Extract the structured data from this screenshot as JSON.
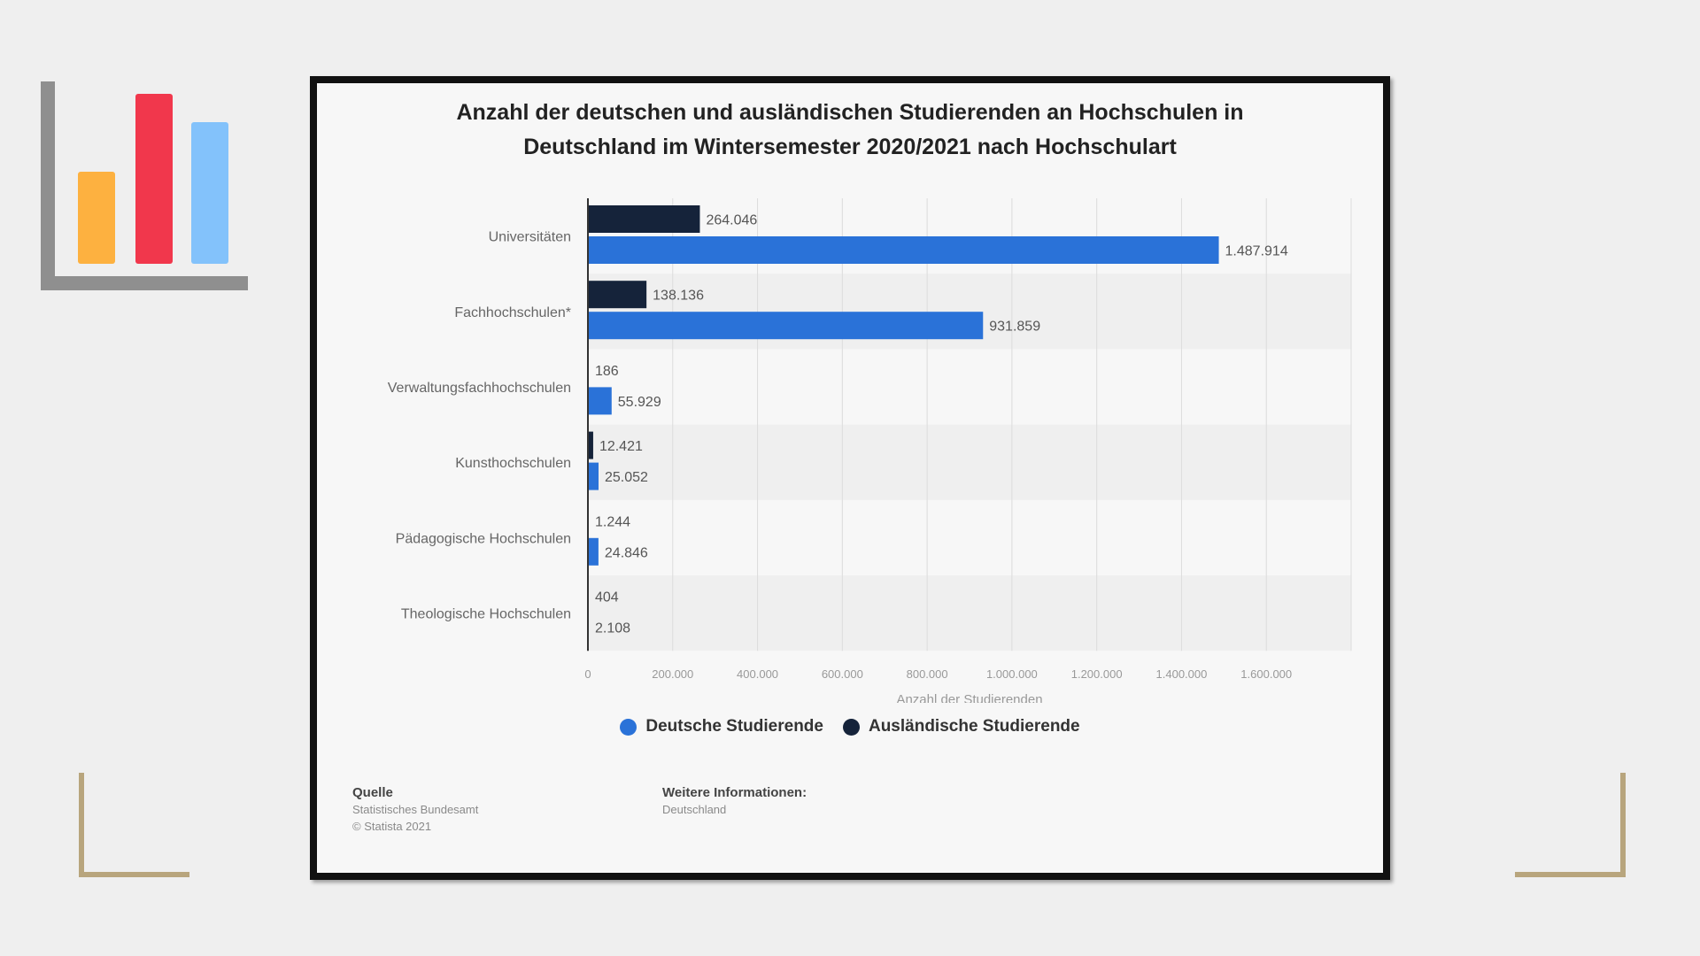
{
  "chart_data": {
    "type": "bar",
    "orientation": "horizontal",
    "title_lines": [
      "Anzahl der deutschen und ausländischen Studierenden an Hochschulen in",
      "Deutschland im Wintersemester 2020/2021 nach Hochschulart"
    ],
    "categories": [
      "Universitäten",
      "Fachhochschulen*",
      "Verwaltungsfachhochschulen",
      "Kunsthochschulen",
      "Pädagogische Hochschulen",
      "Theologische Hochschulen"
    ],
    "series": [
      {
        "name": "Ausländische Studierende",
        "color": "#15233a",
        "values": [
          264046,
          138136,
          186,
          12421,
          1244,
          404
        ],
        "labels": [
          "264.046",
          "138.136",
          "186",
          "12.421",
          "1.244",
          "404"
        ]
      },
      {
        "name": "Deutsche Studierende",
        "color": "#2a72d8",
        "values": [
          1487914,
          931859,
          55929,
          25052,
          24846,
          2108
        ],
        "labels": [
          "1.487.914",
          "931.859",
          "55.929",
          "25.052",
          "24.846",
          "2.108"
        ]
      }
    ],
    "xlim": [
      0,
      1800000
    ],
    "x_ticks": [
      0,
      200000,
      400000,
      600000,
      800000,
      1000000,
      1200000,
      1400000,
      1600000
    ],
    "x_tick_labels": [
      "0",
      "200.000",
      "400.000",
      "600.000",
      "800.000",
      "1.000.000",
      "1.200.000",
      "1.400.000",
      "1.600.000"
    ],
    "xlabel": "Anzahl der Studierenden",
    "legend": [
      {
        "label": "Deutsche Studierende",
        "color": "#2a72d8"
      },
      {
        "label": "Ausländische Studierende",
        "color": "#15233a"
      }
    ],
    "grid": true
  },
  "footer": {
    "source_heading": "Quelle",
    "source_lines": [
      "Statistisches Bundesamt",
      "© Statista 2021"
    ],
    "info_heading": "Weitere Informationen:",
    "info_lines": [
      "Deutschland"
    ]
  }
}
